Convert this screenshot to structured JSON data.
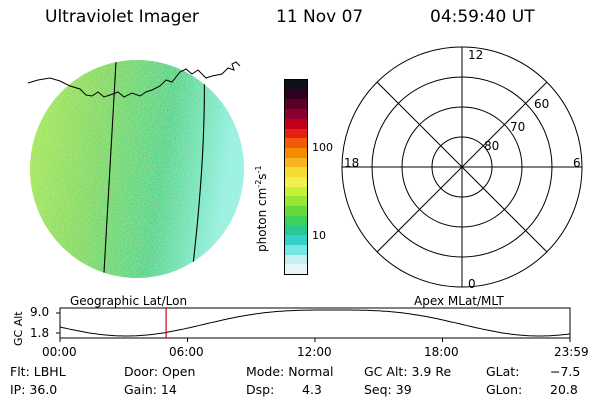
{
  "header": {
    "title": "Ultraviolet Imager",
    "date": "11 Nov 07",
    "time": "04:59:40 UT"
  },
  "colorbar": {
    "unit_label": "photon cm",
    "unit_sup1": "-2",
    "unit_mid": "s",
    "unit_sup2": "-1",
    "tick_labels": [
      "100",
      "10"
    ],
    "colors": [
      "#101018",
      "#300020",
      "#5a0028",
      "#8c0030",
      "#c0001a",
      "#e61e14",
      "#f05a0a",
      "#f58c00",
      "#f7b41e",
      "#f5dc32",
      "#f0f050",
      "#c8f032",
      "#96e632",
      "#64d83c",
      "#3cd25a",
      "#28c896",
      "#32d2c8",
      "#78e6e6",
      "#c3f0f0",
      "#e6f5f5"
    ]
  },
  "left_panel": {
    "caption": "Geographic Lat/Lon",
    "disk_colors": [
      "#a0e650",
      "#3cd28c",
      "#8cf0e6"
    ]
  },
  "polar_plot": {
    "caption": "Apex MLat/MLT",
    "mlt_labels": {
      "top": "12",
      "bottom": "0",
      "left": "18",
      "right": "6"
    },
    "lat_labels": [
      "60",
      "70",
      "80"
    ]
  },
  "altitude_plot": {
    "ylabel": "GC Alt",
    "ytick_labels": [
      "9.0",
      "1.8"
    ],
    "xtick_labels": [
      "00:00",
      "06:00",
      "12:00",
      "18:00",
      "23:59"
    ],
    "current_time_fraction": 0.208,
    "marker_color": "#dd0000"
  },
  "info": {
    "row1": {
      "flt": "Flt: LBHL",
      "door": "Door: Open",
      "mode": "Mode: Normal",
      "gcalt": "GC Alt: 3.9 Re",
      "glat_label": "GLat:",
      "glat_value": "−7.5"
    },
    "row2": {
      "ip": "IP: 36.0",
      "gain": "Gain: 14",
      "dsp_label": "Dsp:",
      "dsp_value": "4.3",
      "seq": "Seq: 39",
      "glon_label": "GLon:",
      "glon_value": "20.8"
    }
  }
}
